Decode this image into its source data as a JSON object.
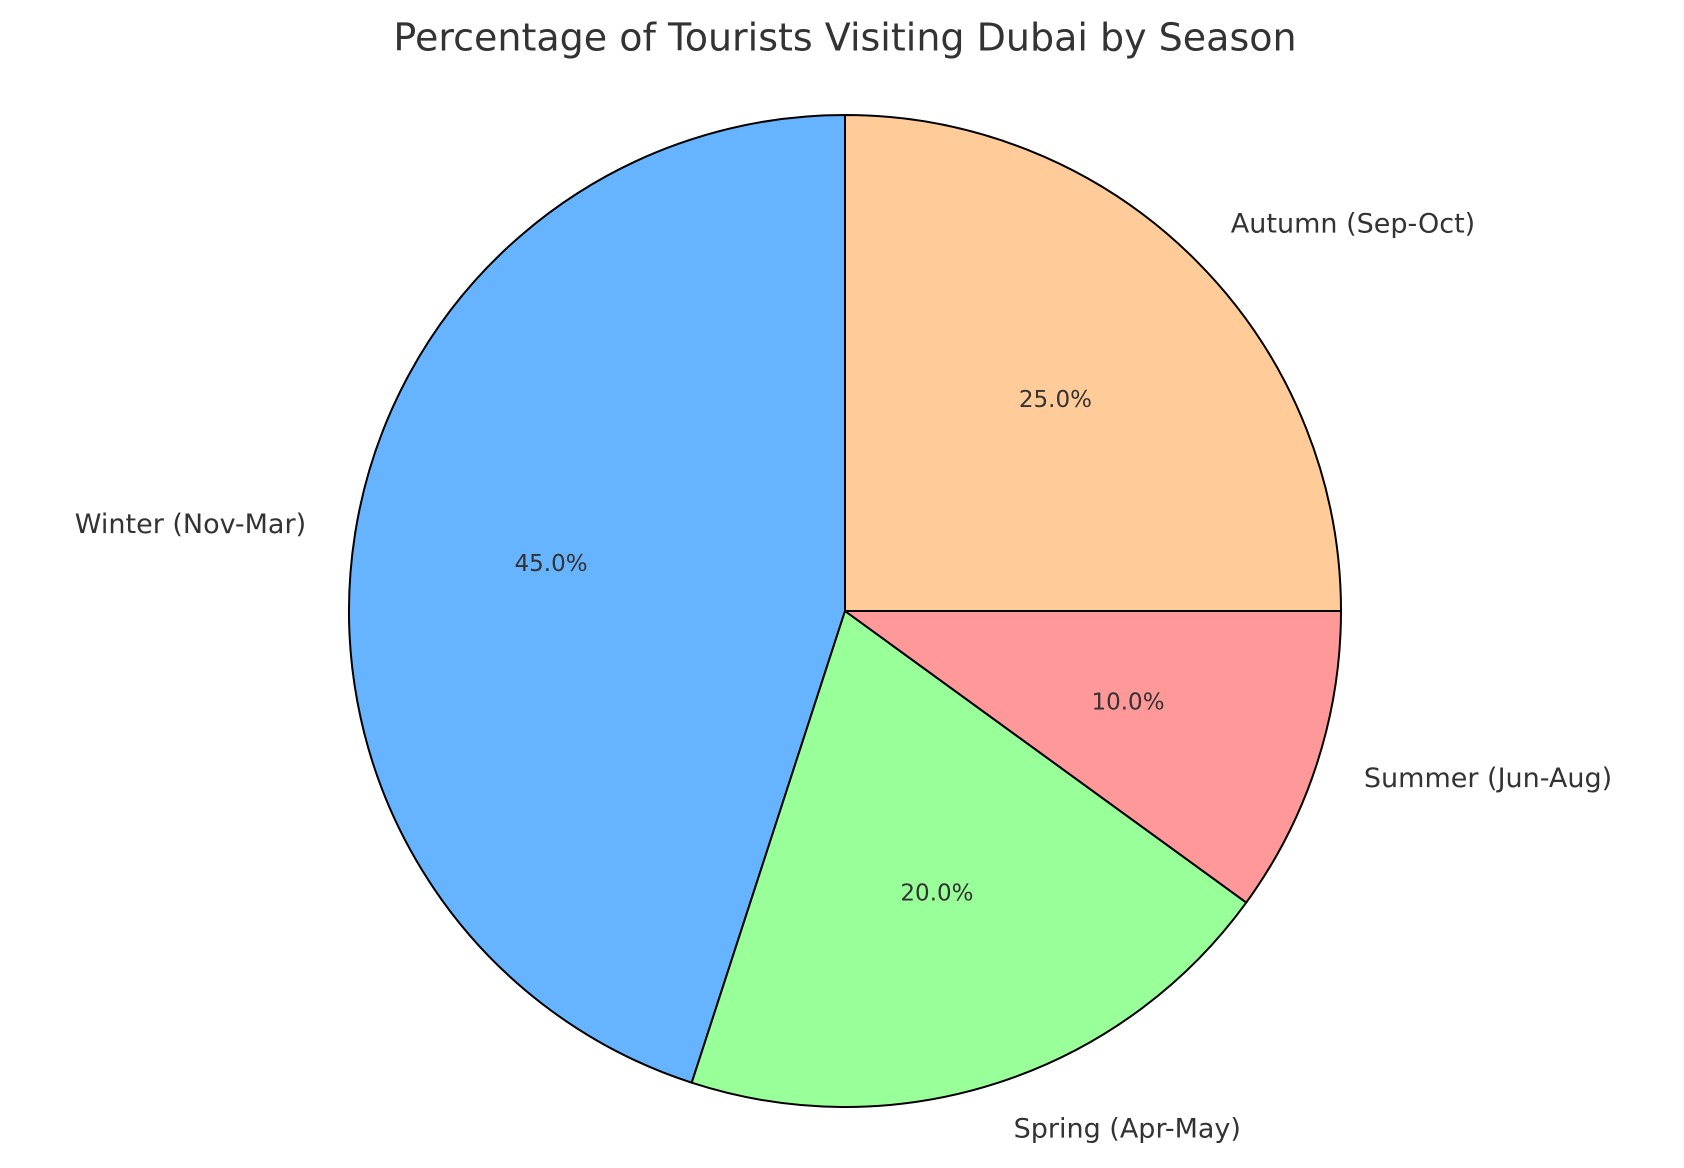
{
  "chart_data": {
    "type": "pie",
    "title": "Percentage of Tourists Visiting Dubai by Season",
    "categories": [
      "Winter (Nov-Mar)",
      "Spring (Apr-May)",
      "Summer (Jun-Aug)",
      "Autumn (Sep-Oct)"
    ],
    "values": [
      45,
      20,
      10,
      25
    ],
    "value_labels": [
      "45.0%",
      "20.0%",
      "10.0%",
      "25.0%"
    ],
    "colors": [
      "#66b3ff",
      "#99ff99",
      "#ff9999",
      "#ffcc99"
    ]
  }
}
